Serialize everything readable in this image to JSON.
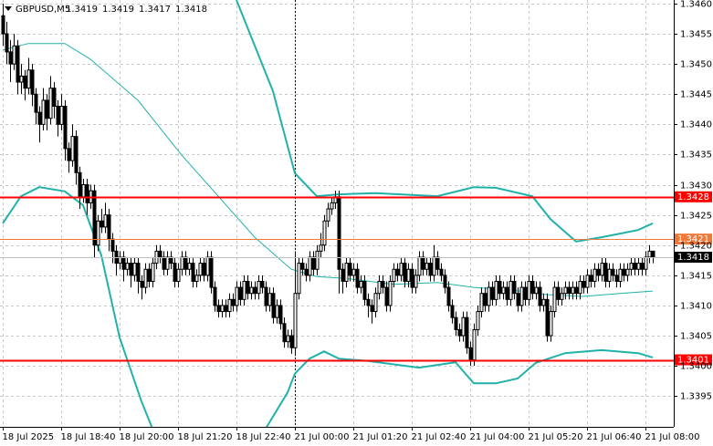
{
  "chart_data": {
    "type": "candlestick",
    "title": "GBPUSD,M5",
    "ohlc_header": [
      1.3419,
      1.3419,
      1.3417,
      1.3418
    ],
    "xlim": [
      -0.75,
      183.75
    ],
    "ylim": [
      1.33899,
      1.34606
    ],
    "xticks": [
      {
        "value": 0,
        "label": "18 Jul 2025"
      },
      {
        "value": 16,
        "label": "18 Jul 18:40"
      },
      {
        "value": 32,
        "label": "18 Jul 20:00"
      },
      {
        "value": 48,
        "label": "18 Jul 21:20"
      },
      {
        "value": 64,
        "label": "18 Jul 22:40"
      },
      {
        "value": 80,
        "label": "21 Jul 00:00"
      },
      {
        "value": 96,
        "label": "21 Jul 01:20"
      },
      {
        "value": 112,
        "label": "21 Jul 02:40"
      },
      {
        "value": 128,
        "label": "21 Jul 04:00"
      },
      {
        "value": 144,
        "label": "21 Jul 05:20"
      },
      {
        "value": 160,
        "label": "21 Jul 06:40"
      },
      {
        "value": 176,
        "label": "21 Jul 08:00"
      }
    ],
    "yticks": [
      1.3395,
      {
        "value": 1.34,
        "label": "1.3400"
      },
      1.3405,
      {
        "value": 1.341,
        "label": "1.3410"
      },
      1.3415,
      {
        "value": 1.342,
        "label": "1.3420"
      },
      1.3425,
      {
        "value": 1.343,
        "label": "1.3430"
      },
      1.3435,
      {
        "value": 1.344,
        "label": "1.3440"
      },
      1.3445,
      {
        "value": 1.345,
        "label": "1.3450"
      },
      1.3455,
      {
        "value": 1.346,
        "label": "1.3460"
      }
    ],
    "grid": true,
    "period_separator": 80,
    "bull_color": "#ffffff",
    "bear_color": "#000000",
    "candles": [
      [
        1.3458,
        1.346,
        1.3453,
        1.3455
      ],
      [
        1.3455,
        1.3457,
        1.345,
        1.3452
      ],
      [
        1.3452,
        1.3454,
        1.3447,
        1.345
      ],
      [
        1.345,
        1.3455,
        1.3449,
        1.3453
      ],
      [
        1.3453,
        1.3454,
        1.3445,
        1.3447
      ],
      [
        1.3447,
        1.345,
        1.3445,
        1.3448
      ],
      [
        1.3448,
        1.3449,
        1.3444,
        1.3446
      ],
      [
        1.3446,
        1.3451,
        1.3445,
        1.3449
      ],
      [
        1.3449,
        1.345,
        1.3443,
        1.3445
      ],
      [
        1.3445,
        1.3446,
        1.344,
        1.3442
      ],
      [
        1.3442,
        1.3443,
        1.3437,
        1.344
      ],
      [
        1.344,
        1.3446,
        1.3439,
        1.3444
      ],
      [
        1.3444,
        1.3445,
        1.3439,
        1.3441
      ],
      [
        1.3441,
        1.3448,
        1.344,
        1.3446
      ],
      [
        1.3446,
        1.3447,
        1.3441,
        1.3443
      ],
      [
        1.3443,
        1.3444,
        1.3438,
        1.344
      ],
      [
        1.344,
        1.3445,
        1.3439,
        1.3443
      ],
      [
        1.3443,
        1.3444,
        1.3434,
        1.3436
      ],
      [
        1.3436,
        1.3437,
        1.3432,
        1.3434
      ],
      [
        1.3434,
        1.344,
        1.3433,
        1.3438
      ],
      [
        1.3438,
        1.3439,
        1.343,
        1.3432
      ],
      [
        1.3432,
        1.3433,
        1.3426,
        1.3428
      ],
      [
        1.3428,
        1.3431,
        1.3427,
        1.343
      ],
      [
        1.343,
        1.3431,
        1.3425,
        1.3427
      ],
      [
        1.3427,
        1.343,
        1.3426,
        1.3429
      ],
      [
        1.3429,
        1.343,
        1.3418,
        1.342
      ],
      [
        1.342,
        1.3425,
        1.3419,
        1.3424
      ],
      [
        1.3424,
        1.3426,
        1.3422,
        1.3423
      ],
      [
        1.3423,
        1.3427,
        1.3422,
        1.3425
      ],
      [
        1.3425,
        1.3426,
        1.3419,
        1.3421
      ],
      [
        1.3421,
        1.3422,
        1.3417,
        1.3419
      ],
      [
        1.3419,
        1.342,
        1.3415,
        1.3417
      ],
      [
        1.3417,
        1.3419,
        1.3416,
        1.3418
      ],
      [
        1.3418,
        1.3419,
        1.3414,
        1.3416
      ],
      [
        1.3416,
        1.3418,
        1.3415,
        1.3417
      ],
      [
        1.3417,
        1.3418,
        1.3413,
        1.3415
      ],
      [
        1.3415,
        1.3418,
        1.3414,
        1.3417
      ],
      [
        1.3417,
        1.3418,
        1.3412,
        1.3414
      ],
      [
        1.3414,
        1.3415,
        1.3411,
        1.3413
      ],
      [
        1.3413,
        1.3417,
        1.3412,
        1.3416
      ],
      [
        1.3416,
        1.3417,
        1.3413,
        1.3414
      ],
      [
        1.3414,
        1.3418,
        1.3413,
        1.3417
      ],
      [
        1.3417,
        1.342,
        1.3416,
        1.3419
      ],
      [
        1.3419,
        1.342,
        1.3417,
        1.3418
      ],
      [
        1.3418,
        1.3419,
        1.3415,
        1.3416
      ],
      [
        1.3416,
        1.3419,
        1.3415,
        1.3418
      ],
      [
        1.3418,
        1.3419,
        1.3416,
        1.3417
      ],
      [
        1.3417,
        1.3418,
        1.3413,
        1.3414
      ],
      [
        1.3414,
        1.3417,
        1.3413,
        1.3416
      ],
      [
        1.3416,
        1.3419,
        1.3415,
        1.3418
      ],
      [
        1.3418,
        1.3419,
        1.3415,
        1.3416
      ],
      [
        1.3416,
        1.3418,
        1.3415,
        1.3417
      ],
      [
        1.3417,
        1.3418,
        1.3413,
        1.3414
      ],
      [
        1.3414,
        1.3416,
        1.3413,
        1.3415
      ],
      [
        1.3415,
        1.3418,
        1.3414,
        1.3417
      ],
      [
        1.3417,
        1.3418,
        1.3414,
        1.3415
      ],
      [
        1.3415,
        1.3419,
        1.3414,
        1.3418
      ],
      [
        1.3418,
        1.3419,
        1.3412,
        1.3413
      ],
      [
        1.3413,
        1.3414,
        1.3409,
        1.341
      ],
      [
        1.341,
        1.3411,
        1.3408,
        1.3409
      ],
      [
        1.3409,
        1.3411,
        1.3408,
        1.341
      ],
      [
        1.341,
        1.3411,
        1.3408,
        1.3409
      ],
      [
        1.3409,
        1.3412,
        1.3408,
        1.3411
      ],
      [
        1.3411,
        1.3412,
        1.3409,
        1.341
      ],
      [
        1.341,
        1.3414,
        1.3409,
        1.3413
      ],
      [
        1.3413,
        1.3414,
        1.341,
        1.3411
      ],
      [
        1.3411,
        1.3415,
        1.341,
        1.3414
      ],
      [
        1.3414,
        1.3415,
        1.3411,
        1.3412
      ],
      [
        1.3412,
        1.3414,
        1.3411,
        1.3413
      ],
      [
        1.3413,
        1.3414,
        1.3411,
        1.3412
      ],
      [
        1.3412,
        1.3415,
        1.3411,
        1.3414
      ],
      [
        1.3414,
        1.3415,
        1.3412,
        1.3413
      ],
      [
        1.3413,
        1.3414,
        1.3409,
        1.341
      ],
      [
        1.341,
        1.3413,
        1.3409,
        1.3412
      ],
      [
        1.3412,
        1.3413,
        1.3407,
        1.3408
      ],
      [
        1.3408,
        1.3411,
        1.3407,
        1.341
      ],
      [
        1.341,
        1.3411,
        1.3406,
        1.3407
      ],
      [
        1.3407,
        1.3408,
        1.3403,
        1.3404
      ],
      [
        1.3404,
        1.3406,
        1.3403,
        1.3405
      ],
      [
        1.3405,
        1.3406,
        1.3402,
        1.3403
      ],
      [
        1.3403,
        1.3419,
        1.3402,
        1.3412
      ],
      [
        1.3412,
        1.3418,
        1.3411,
        1.3417
      ],
      [
        1.3417,
        1.3418,
        1.3415,
        1.3416
      ],
      [
        1.3416,
        1.3417,
        1.3414,
        1.3415
      ],
      [
        1.3415,
        1.3419,
        1.3414,
        1.3418
      ],
      [
        1.3418,
        1.3419,
        1.3415,
        1.3416
      ],
      [
        1.3416,
        1.342,
        1.3415,
        1.3419
      ],
      [
        1.3419,
        1.3422,
        1.3418,
        1.342
      ],
      [
        1.342,
        1.3425,
        1.3419,
        1.3424
      ],
      [
        1.3424,
        1.3427,
        1.3423,
        1.3426
      ],
      [
        1.3426,
        1.3428,
        1.3425,
        1.3427
      ],
      [
        1.3427,
        1.3429,
        1.3426,
        1.3428
      ],
      [
        1.3428,
        1.3429,
        1.3412,
        1.3416
      ],
      [
        1.3416,
        1.3417,
        1.3412,
        1.3414
      ],
      [
        1.3414,
        1.3418,
        1.3413,
        1.3417
      ],
      [
        1.3417,
        1.3418,
        1.3414,
        1.3415
      ],
      [
        1.3415,
        1.3417,
        1.3414,
        1.3416
      ],
      [
        1.3416,
        1.3417,
        1.3412,
        1.3413
      ],
      [
        1.3413,
        1.3415,
        1.3412,
        1.3414
      ],
      [
        1.3414,
        1.3415,
        1.341,
        1.3411
      ],
      [
        1.3411,
        1.3412,
        1.3408,
        1.341
      ],
      [
        1.341,
        1.3411,
        1.3407,
        1.3409
      ],
      [
        1.3409,
        1.3413,
        1.3408,
        1.3412
      ],
      [
        1.3412,
        1.3415,
        1.3411,
        1.3414
      ],
      [
        1.3414,
        1.3415,
        1.3412,
        1.3413
      ],
      [
        1.3413,
        1.3414,
        1.3409,
        1.341
      ],
      [
        1.341,
        1.3415,
        1.3409,
        1.3414
      ],
      [
        1.3414,
        1.3417,
        1.3413,
        1.3416
      ],
      [
        1.3416,
        1.3417,
        1.3414,
        1.3415
      ],
      [
        1.3415,
        1.3418,
        1.3414,
        1.3417
      ],
      [
        1.3417,
        1.3418,
        1.3413,
        1.3414
      ],
      [
        1.3414,
        1.3417,
        1.3413,
        1.3416
      ],
      [
        1.3416,
        1.3417,
        1.3412,
        1.3413
      ],
      [
        1.3413,
        1.3416,
        1.3412,
        1.3415
      ],
      [
        1.3415,
        1.3419,
        1.3414,
        1.3418
      ],
      [
        1.3418,
        1.3419,
        1.3415,
        1.3416
      ],
      [
        1.3416,
        1.3418,
        1.3415,
        1.3417
      ],
      [
        1.3417,
        1.3418,
        1.3414,
        1.3415
      ],
      [
        1.3415,
        1.342,
        1.3414,
        1.3418
      ],
      [
        1.3418,
        1.3419,
        1.3415,
        1.3416
      ],
      [
        1.3416,
        1.3417,
        1.3414,
        1.3415
      ],
      [
        1.3415,
        1.3416,
        1.3412,
        1.3413
      ],
      [
        1.3413,
        1.3414,
        1.3409,
        1.341
      ],
      [
        1.341,
        1.3411,
        1.3407,
        1.3408
      ],
      [
        1.3408,
        1.3409,
        1.3405,
        1.3406
      ],
      [
        1.3406,
        1.3407,
        1.3404,
        1.3405
      ],
      [
        1.3405,
        1.3409,
        1.3404,
        1.3408
      ],
      [
        1.3408,
        1.3409,
        1.3402,
        1.3403
      ],
      [
        1.3403,
        1.3404,
        1.34,
        1.3401
      ],
      [
        1.3401,
        1.3407,
        1.34,
        1.3406
      ],
      [
        1.3406,
        1.341,
        1.3405,
        1.3409
      ],
      [
        1.3409,
        1.3413,
        1.3408,
        1.3412
      ],
      [
        1.3412,
        1.3413,
        1.3409,
        1.341
      ],
      [
        1.341,
        1.3414,
        1.3409,
        1.3413
      ],
      [
        1.3413,
        1.3414,
        1.341,
        1.3411
      ],
      [
        1.3411,
        1.3415,
        1.341,
        1.3414
      ],
      [
        1.3414,
        1.3415,
        1.3411,
        1.3412
      ],
      [
        1.3412,
        1.3414,
        1.3411,
        1.3413
      ],
      [
        1.3413,
        1.3414,
        1.341,
        1.3411
      ],
      [
        1.3411,
        1.3415,
        1.341,
        1.3414
      ],
      [
        1.3414,
        1.3415,
        1.3411,
        1.3412
      ],
      [
        1.3412,
        1.3413,
        1.3409,
        1.341
      ],
      [
        1.341,
        1.3414,
        1.3409,
        1.3413
      ],
      [
        1.3413,
        1.3414,
        1.341,
        1.3411
      ],
      [
        1.3411,
        1.3415,
        1.341,
        1.3414
      ],
      [
        1.3414,
        1.3415,
        1.3411,
        1.3412
      ],
      [
        1.3412,
        1.3414,
        1.3411,
        1.3413
      ],
      [
        1.3413,
        1.3414,
        1.3409,
        1.341
      ],
      [
        1.341,
        1.3412,
        1.3409,
        1.3411
      ],
      [
        1.3411,
        1.3412,
        1.3404,
        1.3405
      ],
      [
        1.3405,
        1.341,
        1.3404,
        1.3409
      ],
      [
        1.3409,
        1.3414,
        1.3408,
        1.3413
      ],
      [
        1.3413,
        1.3414,
        1.341,
        1.3411
      ],
      [
        1.3411,
        1.3413,
        1.341,
        1.3412
      ],
      [
        1.3412,
        1.3414,
        1.3411,
        1.3413
      ],
      [
        1.3413,
        1.3414,
        1.3411,
        1.3412
      ],
      [
        1.3412,
        1.3414,
        1.3411,
        1.3413
      ],
      [
        1.3413,
        1.3414,
        1.3411,
        1.3412
      ],
      [
        1.3412,
        1.3415,
        1.3411,
        1.3414
      ],
      [
        1.3414,
        1.3415,
        1.3412,
        1.3413
      ],
      [
        1.3413,
        1.3416,
        1.3412,
        1.3415
      ],
      [
        1.3415,
        1.3416,
        1.3413,
        1.3414
      ],
      [
        1.3414,
        1.3417,
        1.3413,
        1.3416
      ],
      [
        1.3416,
        1.3417,
        1.3414,
        1.3415
      ],
      [
        1.3415,
        1.3418,
        1.3414,
        1.3417
      ],
      [
        1.3417,
        1.3418,
        1.3413,
        1.3414
      ],
      [
        1.3414,
        1.3417,
        1.3413,
        1.3416
      ],
      [
        1.3416,
        1.3417,
        1.3414,
        1.3415
      ],
      [
        1.3415,
        1.3416,
        1.3413,
        1.3414
      ],
      [
        1.3414,
        1.3417,
        1.3413,
        1.3416
      ],
      [
        1.3416,
        1.3417,
        1.3414,
        1.3415
      ],
      [
        1.3415,
        1.3417,
        1.3414,
        1.3416
      ],
      [
        1.3416,
        1.3418,
        1.3415,
        1.3417
      ],
      [
        1.3417,
        1.3418,
        1.3415,
        1.3416
      ],
      [
        1.3416,
        1.3418,
        1.3415,
        1.3417
      ],
      [
        1.3417,
        1.3418,
        1.3415,
        1.3416
      ],
      [
        1.3416,
        1.3419,
        1.3415,
        1.3418
      ],
      [
        1.3418,
        1.342,
        1.3417,
        1.3419
      ],
      [
        1.3419,
        1.3419,
        1.3417,
        1.3418
      ]
    ],
    "lines": [
      {
        "color": "#20b2aa",
        "width": 1,
        "x": [
          0,
          7,
          17,
          24,
          37,
          49,
          59,
          69,
          79,
          86,
          94,
          107,
          119,
          129,
          139,
          149,
          159,
          169,
          178
        ],
        "values": [
          1.34523,
          1.34534,
          1.34534,
          1.34508,
          1.3444,
          1.34349,
          1.34281,
          1.34213,
          1.3416,
          1.34148,
          1.34145,
          1.34135,
          1.34138,
          1.3413,
          1.34126,
          1.34118,
          1.34115,
          1.3412,
          1.34124
        ]
      },
      {
        "color": "#20b2aa",
        "width": 2,
        "x": [
          64,
          74,
          80,
          86,
          92,
          102,
          119,
          129,
          135,
          145,
          150,
          157,
          164,
          174,
          178
        ],
        "values": [
          1.34606,
          1.34455,
          1.34319,
          1.34281,
          1.34284,
          1.34286,
          1.34281,
          1.34296,
          1.34295,
          1.34281,
          1.34243,
          1.34206,
          1.34213,
          1.34225,
          1.34236
        ]
      },
      {
        "color": "#20b2aa",
        "width": 2,
        "x": [
          0,
          5,
          10,
          17,
          22,
          27,
          32,
          38,
          42,
          50,
          72,
          78,
          80,
          84,
          88,
          92,
          100,
          114,
          124,
          129,
          135,
          141,
          146,
          154,
          164,
          174,
          178
        ],
        "values": [
          1.34236,
          1.34281,
          1.34296,
          1.34289,
          1.34266,
          1.34183,
          1.34047,
          1.33941,
          1.33881,
          null,
          1.33896,
          1.33956,
          1.33987,
          1.34012,
          1.34024,
          1.34012,
          1.34008,
          1.33997,
          1.34006,
          1.33971,
          1.33971,
          1.33979,
          1.34005,
          1.34021,
          1.34026,
          1.34021,
          1.34014
        ]
      }
    ],
    "levels": [
      {
        "value": 1.3428,
        "color": "#ff0000"
      },
      {
        "value": 1.3421,
        "color": "#f07838"
      },
      {
        "value": 1.3401,
        "color": "#ff0000"
      }
    ],
    "current_price": {
      "value": 1.3418,
      "color": "#000000"
    }
  }
}
